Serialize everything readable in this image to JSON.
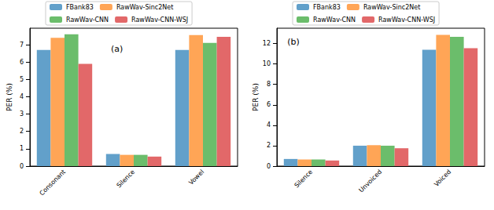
{
  "chart_data": [
    {
      "type": "bar",
      "annotations": [
        "(a)"
      ],
      "y_label": "PER (%)",
      "categories": [
        "Consonant",
        "Silence",
        "Vowel"
      ],
      "series": [
        {
          "name": "FBank83",
          "color": "#62a0ca",
          "values": [
            6.7,
            0.7,
            6.7
          ]
        },
        {
          "name": "RawWav-Sinc2Net",
          "color": "#ffa556",
          "values": [
            7.4,
            0.65,
            7.55
          ]
        },
        {
          "name": "RawWav-CNN",
          "color": "#6bbd6b",
          "values": [
            7.6,
            0.65,
            7.1
          ]
        },
        {
          "name": "RawWav-CNN-WSJ",
          "color": "#e26869",
          "values": [
            5.9,
            0.55,
            7.45
          ]
        }
      ],
      "ylim": [
        0,
        7.95
      ],
      "yticks": [
        0,
        1,
        2,
        3,
        4,
        5,
        6,
        7
      ],
      "grid": false,
      "legend": "top"
    },
    {
      "type": "bar",
      "annotations": [
        "(b)"
      ],
      "y_label": "PER (%)",
      "categories": [
        "Silence",
        "Unvoiced",
        "Voiced"
      ],
      "series": [
        {
          "name": "FBank83",
          "color": "#62a0ca",
          "values": [
            0.7,
            2.0,
            11.4
          ]
        },
        {
          "name": "RawWav-Sinc2Net",
          "color": "#ffa556",
          "values": [
            0.65,
            2.05,
            12.85
          ]
        },
        {
          "name": "RawWav-CNN",
          "color": "#6bbd6b",
          "values": [
            0.65,
            2.0,
            12.65
          ]
        },
        {
          "name": "RawWav-CNN-WSJ",
          "color": "#e26869",
          "values": [
            0.55,
            1.75,
            11.55
          ]
        }
      ],
      "ylim": [
        0,
        13.5
      ],
      "yticks": [
        0,
        2,
        4,
        6,
        8,
        10,
        12
      ],
      "grid": false,
      "legend": "top"
    }
  ]
}
